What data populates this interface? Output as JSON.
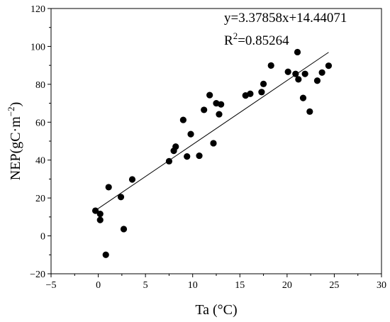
{
  "chart_data": {
    "type": "scatter",
    "xlabel": "Ta (°C)",
    "ylabel_parts": {
      "base": "NEP(gC·m",
      "exp": "−2",
      "close": ")"
    },
    "xlim": [
      -5,
      30
    ],
    "ylim": [
      -20,
      120
    ],
    "xticks": [
      -5,
      0,
      5,
      10,
      15,
      20,
      25,
      30
    ],
    "yticks": [
      -20,
      0,
      20,
      40,
      60,
      80,
      100,
      120
    ],
    "equation": "y=3.37858x+14.44071",
    "r2": {
      "prefix": "R",
      "exp": "2",
      "value": "=0.85264"
    },
    "fit": {
      "slope": 3.37858,
      "intercept": 14.44071,
      "x_range": [
        -0.3,
        24.4
      ]
    },
    "points": [
      {
        "x": -0.3,
        "y": 13.3
      },
      {
        "x": 0.2,
        "y": 8.4
      },
      {
        "x": 0.2,
        "y": 11.6
      },
      {
        "x": 0.8,
        "y": -10.0
      },
      {
        "x": 1.1,
        "y": 25.7
      },
      {
        "x": 2.4,
        "y": 20.5
      },
      {
        "x": 2.7,
        "y": 3.6
      },
      {
        "x": 3.6,
        "y": 29.8
      },
      {
        "x": 7.5,
        "y": 39.4
      },
      {
        "x": 8.0,
        "y": 44.9
      },
      {
        "x": 8.2,
        "y": 47.1
      },
      {
        "x": 9.0,
        "y": 61.2
      },
      {
        "x": 9.4,
        "y": 41.9
      },
      {
        "x": 9.8,
        "y": 53.7
      },
      {
        "x": 10.7,
        "y": 42.3
      },
      {
        "x": 11.2,
        "y": 66.5
      },
      {
        "x": 11.8,
        "y": 74.3
      },
      {
        "x": 12.2,
        "y": 48.9
      },
      {
        "x": 12.5,
        "y": 70.0
      },
      {
        "x": 12.8,
        "y": 64.2
      },
      {
        "x": 13.0,
        "y": 69.4
      },
      {
        "x": 15.6,
        "y": 74.1
      },
      {
        "x": 16.1,
        "y": 75.0
      },
      {
        "x": 17.3,
        "y": 75.9
      },
      {
        "x": 17.5,
        "y": 80.2
      },
      {
        "x": 18.3,
        "y": 89.9
      },
      {
        "x": 20.1,
        "y": 86.6
      },
      {
        "x": 20.9,
        "y": 85.5
      },
      {
        "x": 21.1,
        "y": 97.0
      },
      {
        "x": 21.2,
        "y": 82.6
      },
      {
        "x": 21.7,
        "y": 72.8
      },
      {
        "x": 21.9,
        "y": 85.5
      },
      {
        "x": 22.4,
        "y": 65.6
      },
      {
        "x": 23.2,
        "y": 81.9
      },
      {
        "x": 23.7,
        "y": 86.2
      },
      {
        "x": 24.4,
        "y": 89.8
      }
    ]
  }
}
